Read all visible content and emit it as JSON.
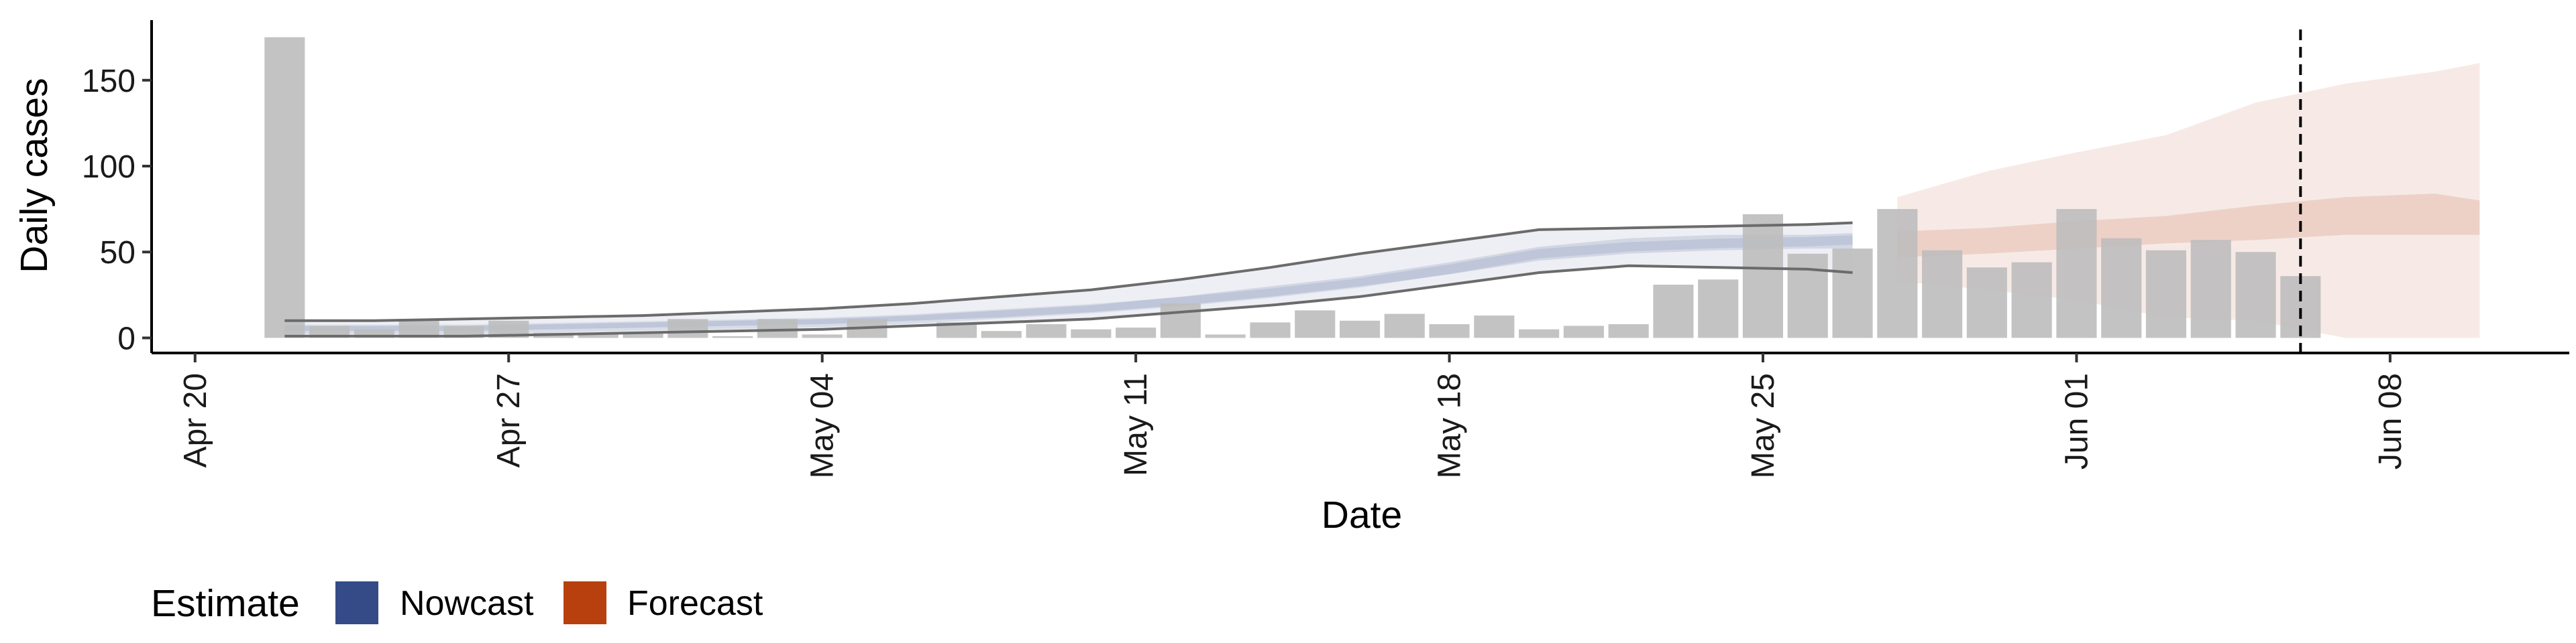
{
  "chart_data": {
    "type": "bar",
    "xlabel": "Date",
    "ylabel": "Daily cases",
    "ylim": [
      -8,
      185
    ],
    "xlim": [
      "2020-04-19",
      "2020-06-12"
    ],
    "y_ticks": [
      0,
      50,
      100,
      150
    ],
    "x_ticks": [
      {
        "date": "2020-04-20",
        "label": "Apr 20"
      },
      {
        "date": "2020-04-27",
        "label": "Apr 27"
      },
      {
        "date": "2020-05-04",
        "label": "May 04"
      },
      {
        "date": "2020-05-11",
        "label": "May 11"
      },
      {
        "date": "2020-05-18",
        "label": "May 18"
      },
      {
        "date": "2020-05-25",
        "label": "May 25"
      },
      {
        "date": "2020-06-01",
        "label": "Jun 01"
      },
      {
        "date": "2020-06-08",
        "label": "Jun 08"
      }
    ],
    "grid": false,
    "bars": {
      "color": "#bdbdbd",
      "dates": [
        "2020-04-22",
        "2020-04-23",
        "2020-04-24",
        "2020-04-25",
        "2020-04-26",
        "2020-04-27",
        "2020-04-28",
        "2020-04-29",
        "2020-04-30",
        "2020-05-01",
        "2020-05-02",
        "2020-05-03",
        "2020-05-04",
        "2020-05-05",
        "2020-05-06",
        "2020-05-07",
        "2020-05-08",
        "2020-05-09",
        "2020-05-10",
        "2020-05-11",
        "2020-05-12",
        "2020-05-13",
        "2020-05-14",
        "2020-05-15",
        "2020-05-16",
        "2020-05-17",
        "2020-05-18",
        "2020-05-19",
        "2020-05-20",
        "2020-05-21",
        "2020-05-22",
        "2020-05-23",
        "2020-05-24",
        "2020-05-25",
        "2020-05-26",
        "2020-05-27",
        "2020-05-28",
        "2020-05-29",
        "2020-05-30",
        "2020-05-31",
        "2020-06-01",
        "2020-06-02",
        "2020-06-03",
        "2020-06-04",
        "2020-06-05",
        "2020-06-06"
      ],
      "values": [
        175,
        7,
        5,
        10,
        7,
        10,
        3,
        3,
        3,
        11,
        1,
        11,
        2,
        11,
        0,
        9,
        4,
        8,
        5,
        6,
        20,
        2,
        9,
        16,
        10,
        14,
        8,
        13,
        5,
        7,
        8,
        31,
        34,
        72,
        49,
        52,
        75,
        51,
        41,
        44,
        75,
        58,
        51,
        57,
        50,
        36
      ]
    },
    "series": [
      {
        "name": "Nowcast",
        "color": "#3b4f8a",
        "dates": [
          "2020-04-22",
          "2020-04-24",
          "2020-04-26",
          "2020-04-28",
          "2020-04-30",
          "2020-05-02",
          "2020-05-04",
          "2020-05-06",
          "2020-05-08",
          "2020-05-10",
          "2020-05-12",
          "2020-05-14",
          "2020-05-16",
          "2020-05-18",
          "2020-05-20",
          "2020-05-22",
          "2020-05-24",
          "2020-05-26",
          "2020-05-27"
        ],
        "median": [
          5,
          5,
          5,
          6,
          7,
          8,
          9,
          11,
          14,
          17,
          21,
          26,
          32,
          40,
          49,
          53,
          55,
          56,
          57
        ],
        "lower50": [
          4,
          4,
          4,
          5,
          6,
          7,
          8,
          10,
          12,
          15,
          19,
          24,
          30,
          37,
          45,
          49,
          51,
          52,
          52
        ],
        "upper50": [
          7,
          7,
          7,
          8,
          9,
          10,
          11,
          13,
          16,
          19,
          24,
          30,
          36,
          44,
          53,
          58,
          60,
          60,
          61
        ],
        "lower90": [
          1,
          1,
          1,
          2,
          3,
          4,
          5,
          7,
          9,
          11,
          15,
          19,
          24,
          31,
          38,
          42,
          41,
          40,
          38
        ],
        "upper90": [
          10,
          10,
          11,
          12,
          13,
          15,
          17,
          20,
          24,
          28,
          34,
          41,
          49,
          56,
          63,
          64,
          65,
          66,
          67
        ]
      },
      {
        "name": "Forecast",
        "color": "#b8431a",
        "dates": [
          "2020-05-28",
          "2020-05-30",
          "2020-06-01",
          "2020-06-03",
          "2020-06-05",
          "2020-06-07",
          "2020-06-09",
          "2020-06-10"
        ],
        "lower50": [
          47,
          49,
          52,
          55,
          57,
          60,
          60,
          60
        ],
        "upper50": [
          62,
          64,
          68,
          71,
          77,
          82,
          84,
          80
        ],
        "lower90": [
          33,
          28,
          22,
          12,
          10,
          0,
          0,
          0
        ],
        "upper90": [
          82,
          97,
          108,
          118,
          137,
          148,
          155,
          160
        ]
      }
    ],
    "vline": {
      "date": "2020-06-06",
      "style": "dashed"
    },
    "legend": {
      "title": "Estimate",
      "placement": "bottom-left",
      "items": [
        {
          "label": "Nowcast",
          "color": "#344b88"
        },
        {
          "label": "Forecast",
          "color": "#b8400e"
        }
      ]
    }
  }
}
